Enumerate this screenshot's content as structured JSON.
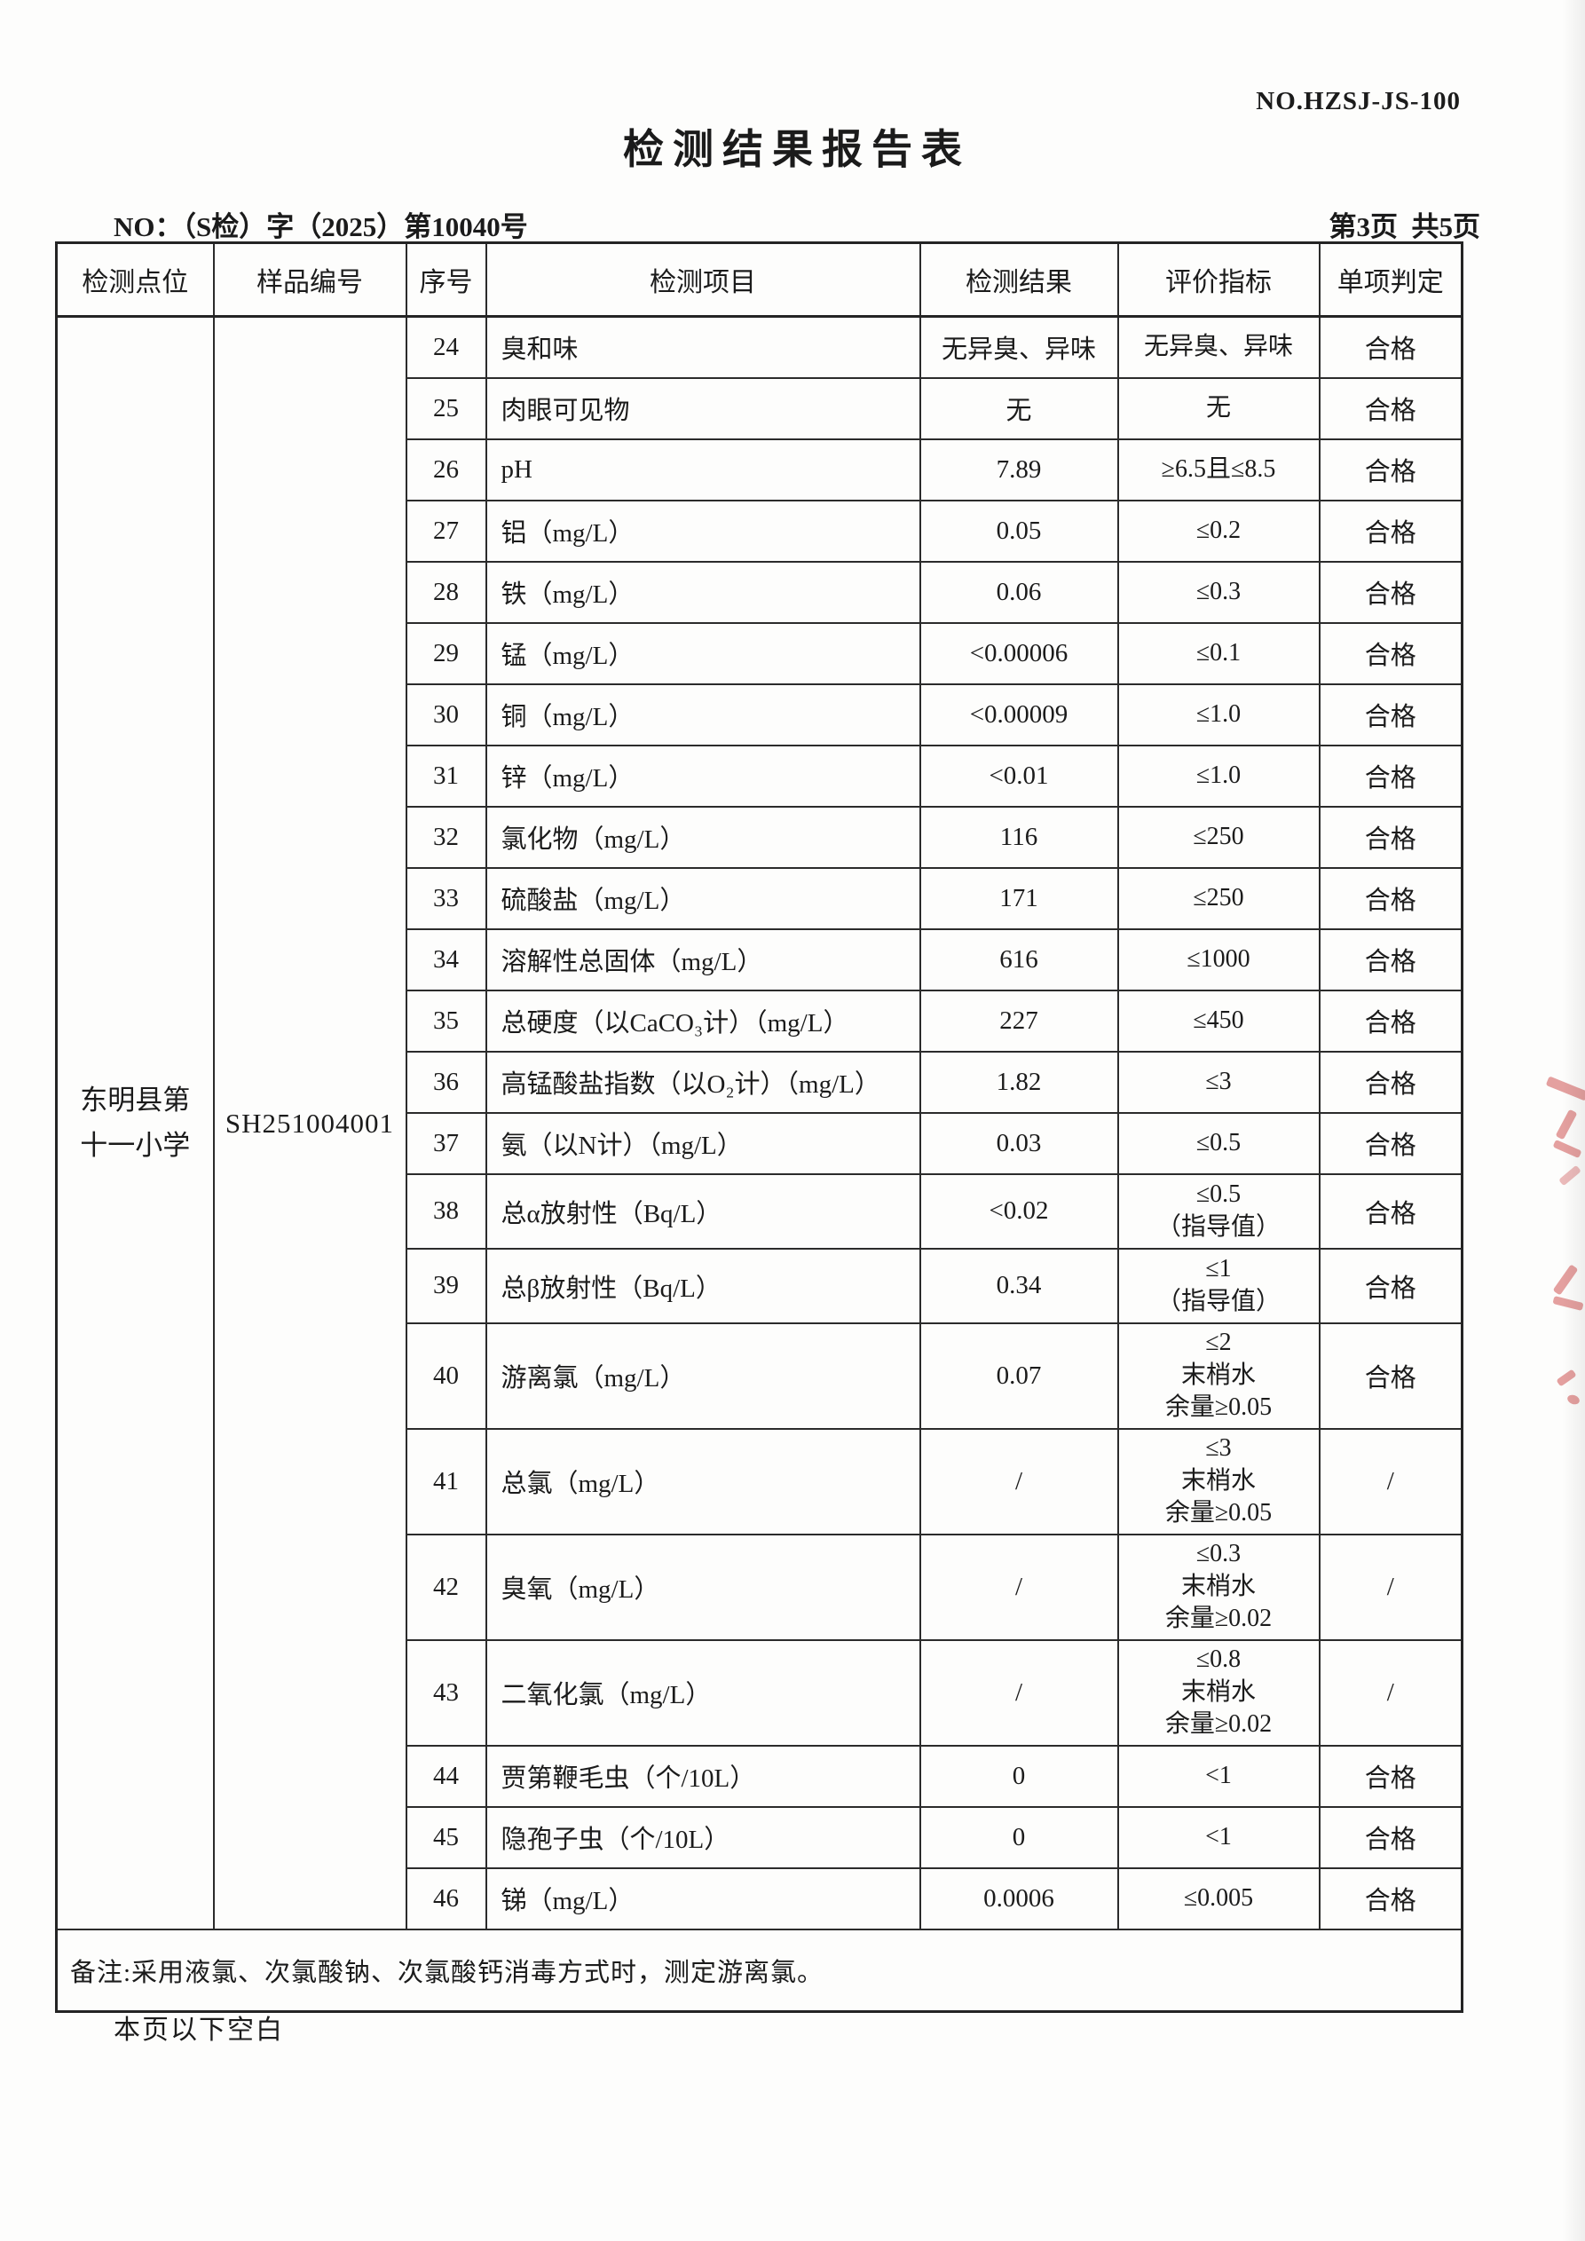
{
  "header": {
    "doc_no": "NO.HZSJ-JS-100",
    "title": "检测结果报告表",
    "report_no_full": "NO：（S检）字（2025）第10040号",
    "page_info": "第3页  共5页"
  },
  "table": {
    "columns": [
      "检测点位",
      "样品编号",
      "序号",
      "检测项目",
      "检测结果",
      "评价指标",
      "单项判定"
    ],
    "point_name": "东明县第\n十一小学",
    "sample_id": "SH251004001",
    "rows": [
      {
        "no": "24",
        "item": "臭和味",
        "result": "无异臭、异味",
        "standard": "无异臭、异味",
        "verdict": "合格"
      },
      {
        "no": "25",
        "item": "肉眼可见物",
        "result": "无",
        "standard": "无",
        "verdict": "合格"
      },
      {
        "no": "26",
        "item": "pH",
        "result": "7.89",
        "standard": "≥6.5且≤8.5",
        "verdict": "合格"
      },
      {
        "no": "27",
        "item": "铝（mg/L）",
        "result": "0.05",
        "standard": "≤0.2",
        "verdict": "合格"
      },
      {
        "no": "28",
        "item": "铁（mg/L）",
        "result": "0.06",
        "standard": "≤0.3",
        "verdict": "合格"
      },
      {
        "no": "29",
        "item": "锰（mg/L）",
        "result": "<0.00006",
        "standard": "≤0.1",
        "verdict": "合格"
      },
      {
        "no": "30",
        "item": "铜（mg/L）",
        "result": "<0.00009",
        "standard": "≤1.0",
        "verdict": "合格"
      },
      {
        "no": "31",
        "item": "锌（mg/L）",
        "result": "<0.01",
        "standard": "≤1.0",
        "verdict": "合格"
      },
      {
        "no": "32",
        "item": "氯化物（mg/L）",
        "result": "116",
        "standard": "≤250",
        "verdict": "合格"
      },
      {
        "no": "33",
        "item": "硫酸盐（mg/L）",
        "result": "171",
        "standard": "≤250",
        "verdict": "合格"
      },
      {
        "no": "34",
        "item": "溶解性总固体（mg/L）",
        "result": "616",
        "standard": "≤1000",
        "verdict": "合格"
      },
      {
        "no": "35",
        "item": "总硬度（以CaCO₃计）（mg/L）",
        "result": "227",
        "standard": "≤450",
        "verdict": "合格"
      },
      {
        "no": "36",
        "item": "高锰酸盐指数（以O₂计）（mg/L）",
        "result": "1.82",
        "standard": "≤3",
        "verdict": "合格"
      },
      {
        "no": "37",
        "item": "氨（以N计）（mg/L）",
        "result": "0.03",
        "standard": "≤0.5",
        "verdict": "合格"
      },
      {
        "no": "38",
        "item": "总α放射性（Bq/L）",
        "result": "<0.02",
        "standard": "≤0.5\n（指导值）",
        "verdict": "合格"
      },
      {
        "no": "39",
        "item": "总β放射性（Bq/L）",
        "result": "0.34",
        "standard": "≤1\n（指导值）",
        "verdict": "合格"
      },
      {
        "no": "40",
        "item": "游离氯（mg/L）",
        "result": "0.07",
        "standard": "≤2\n末梢水\n余量≥0.05",
        "verdict": "合格"
      },
      {
        "no": "41",
        "item": "总氯（mg/L）",
        "result": "/",
        "standard": "≤3\n末梢水\n余量≥0.05",
        "verdict": "/"
      },
      {
        "no": "42",
        "item": "臭氧（mg/L）",
        "result": "/",
        "standard": "≤0.3\n末梢水\n余量≥0.02",
        "verdict": "/"
      },
      {
        "no": "43",
        "item": "二氧化氯（mg/L）",
        "result": "/",
        "standard": "≤0.8\n末梢水\n余量≥0.02",
        "verdict": "/"
      },
      {
        "no": "44",
        "item": "贾第鞭毛虫（个/10L）",
        "result": "0",
        "standard": "<1",
        "verdict": "合格"
      },
      {
        "no": "45",
        "item": "隐孢子虫（个/10L）",
        "result": "0",
        "standard": "<1",
        "verdict": "合格"
      },
      {
        "no": "46",
        "item": "锑（mg/L）",
        "result": "0.0006",
        "standard": "≤0.005",
        "verdict": "合格"
      }
    ],
    "note_full": "备注:采用液氯、次氯酸钠、次氯酸钙消毒方式时，测定游离氯。"
  },
  "footer": {
    "blank_note": "本页以下空白"
  }
}
